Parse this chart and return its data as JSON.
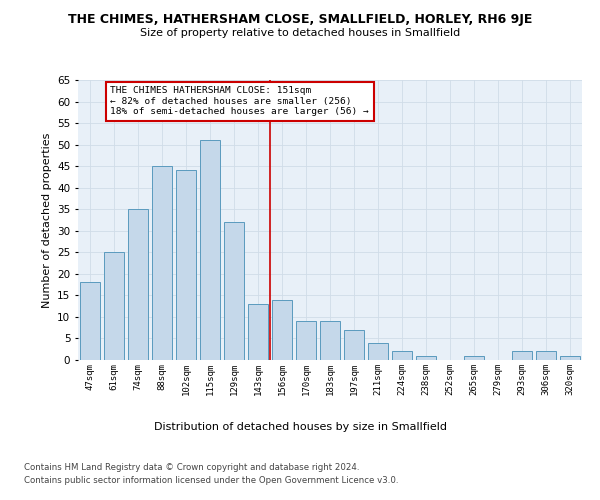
{
  "title": "THE CHIMES, HATHERSHAM CLOSE, SMALLFIELD, HORLEY, RH6 9JE",
  "subtitle": "Size of property relative to detached houses in Smallfield",
  "xlabel": "Distribution of detached houses by size in Smallfield",
  "ylabel": "Number of detached properties",
  "categories": [
    "47sqm",
    "61sqm",
    "74sqm",
    "88sqm",
    "102sqm",
    "115sqm",
    "129sqm",
    "143sqm",
    "156sqm",
    "170sqm",
    "183sqm",
    "197sqm",
    "211sqm",
    "224sqm",
    "238sqm",
    "252sqm",
    "265sqm",
    "279sqm",
    "293sqm",
    "306sqm",
    "320sqm"
  ],
  "values": [
    18,
    25,
    35,
    45,
    44,
    51,
    32,
    13,
    14,
    9,
    9,
    7,
    4,
    2,
    1,
    0,
    1,
    0,
    2,
    2,
    1
  ],
  "bar_color": "#c5d8ea",
  "bar_edge_color": "#5a9abe",
  "annotation_line1": "THE CHIMES HATHERSHAM CLOSE: 151sqm",
  "annotation_line2": "← 82% of detached houses are smaller (256)",
  "annotation_line3": "18% of semi-detached houses are larger (56) →",
  "annotation_box_color": "#ffffff",
  "annotation_box_edge_color": "#cc0000",
  "vline_color": "#cc0000",
  "ylim": [
    0,
    65
  ],
  "yticks": [
    0,
    5,
    10,
    15,
    20,
    25,
    30,
    35,
    40,
    45,
    50,
    55,
    60,
    65
  ],
  "grid_color": "#d0dce8",
  "background_color": "#e8f0f8",
  "footer_line1": "Contains HM Land Registry data © Crown copyright and database right 2024.",
  "footer_line2": "Contains public sector information licensed under the Open Government Licence v3.0."
}
